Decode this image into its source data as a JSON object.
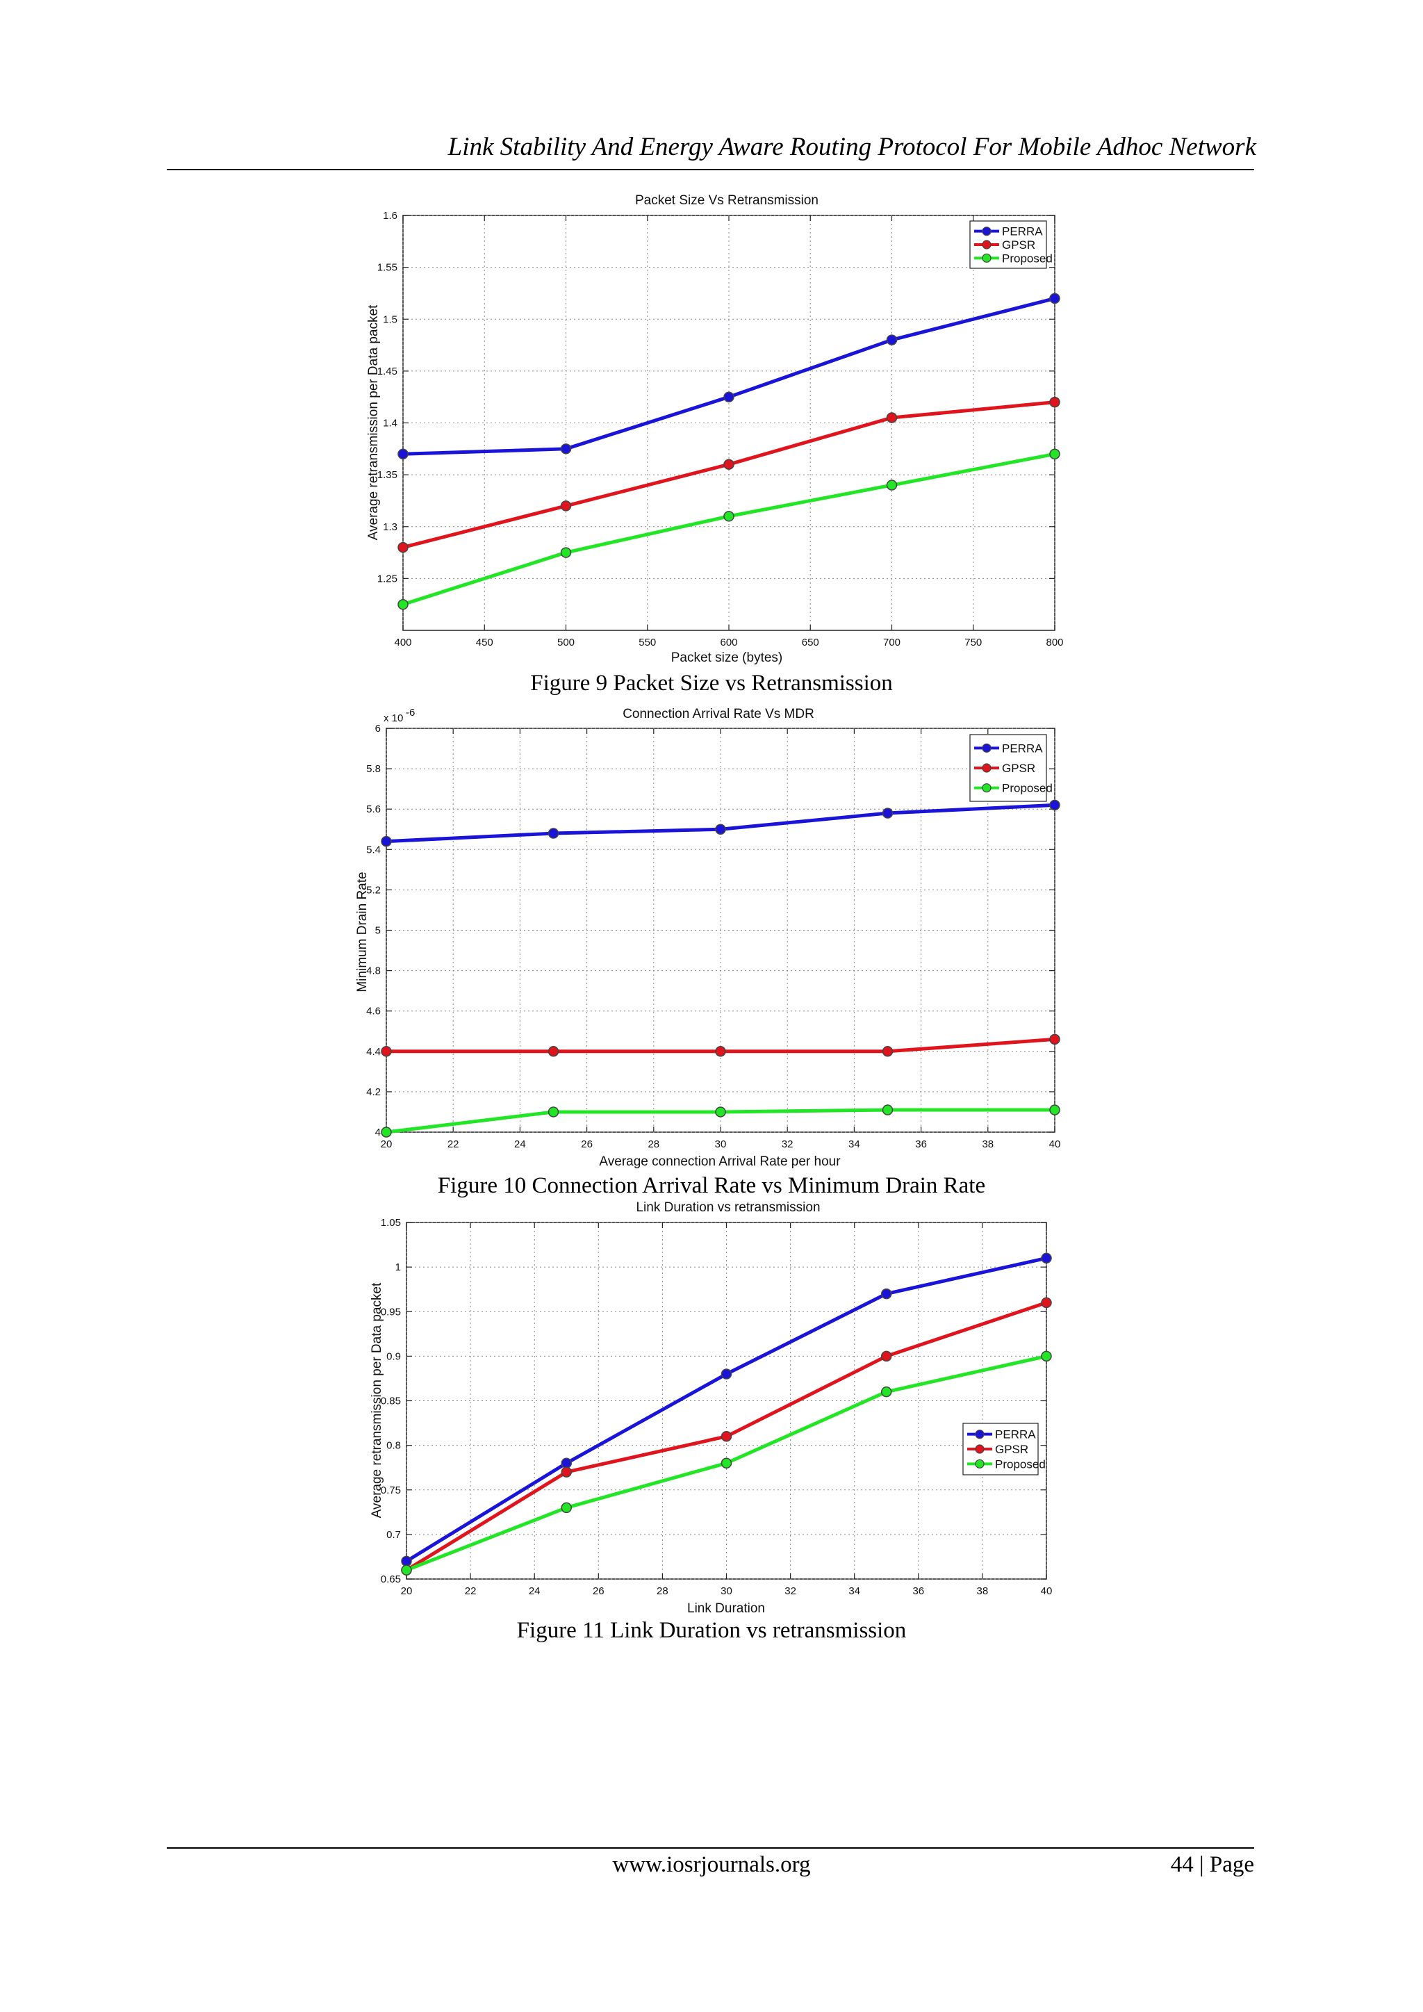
{
  "page": {
    "header": "Link Stability And Energy Aware Routing Protocol  For  Mobile Adhoc Network",
    "footer_url": "www.iosrjournals.org",
    "footer_page": "44 | Page"
  },
  "series_colors": {
    "PERRA": "#1a14d9",
    "GPSR": "#e0141c",
    "Proposed": "#22e625"
  },
  "chart_data": [
    {
      "type": "line",
      "title": "Packet Size Vs Retransmission",
      "xlabel": "Packet size (bytes)",
      "ylabel": "Average retransmission per Data packet",
      "caption": "Figure 9 Packet Size vs Retransmission",
      "x": [
        400,
        500,
        600,
        700,
        800
      ],
      "xlim": [
        400,
        800
      ],
      "ylim": [
        1.2,
        1.6
      ],
      "xticks": [
        400,
        450,
        500,
        550,
        600,
        650,
        700,
        750,
        800
      ],
      "yticks": [
        1.25,
        1.3,
        1.35,
        1.4,
        1.45,
        1.5,
        1.55,
        1.6
      ],
      "xtick_labels": [
        "400",
        "450",
        "500",
        "550",
        "600",
        "650",
        "700",
        "750",
        "800"
      ],
      "ytick_labels": [
        "1.25",
        "1.3",
        "1.35",
        "1.4",
        "1.45",
        "1.5",
        "1.55",
        "1.6"
      ],
      "multiplier": "",
      "legend": "top-right",
      "grid": true,
      "series": [
        {
          "name": "PERRA",
          "values": [
            1.37,
            1.375,
            1.425,
            1.48,
            1.52
          ]
        },
        {
          "name": "GPSR",
          "values": [
            1.28,
            1.32,
            1.36,
            1.405,
            1.42
          ]
        },
        {
          "name": "Proposed",
          "values": [
            1.225,
            1.275,
            1.31,
            1.34,
            1.37
          ]
        }
      ]
    },
    {
      "type": "line",
      "title": "Connection Arrival Rate Vs MDR",
      "xlabel": "Average connection Arrival Rate per hour",
      "ylabel": "Minimum Drain Rate",
      "caption": "Figure 10 Connection Arrival Rate vs Minimum Drain Rate",
      "x": [
        20,
        25,
        30,
        35,
        40
      ],
      "xlim": [
        20,
        40
      ],
      "ylim": [
        4.0,
        6.0
      ],
      "xticks": [
        20,
        22,
        24,
        26,
        28,
        30,
        32,
        34,
        36,
        38,
        40
      ],
      "yticks": [
        4.0,
        4.2,
        4.4,
        4.6,
        4.8,
        5.0,
        5.2,
        5.4,
        5.6,
        5.8,
        6.0
      ],
      "xtick_labels": [
        "20",
        "22",
        "24",
        "26",
        "28",
        "30",
        "32",
        "34",
        "36",
        "38",
        "40"
      ],
      "ytick_labels": [
        "4",
        "4.2",
        "4.4",
        "4.6",
        "4.8",
        "5",
        "5.2",
        "5.4",
        "5.6",
        "5.8",
        "6"
      ],
      "multiplier": "x 10",
      "multiplier_exp": "-6",
      "legend": "top-right",
      "grid": true,
      "series": [
        {
          "name": "PERRA",
          "values": [
            5.44,
            5.48,
            5.5,
            5.58,
            5.62
          ]
        },
        {
          "name": "GPSR",
          "values": [
            4.4,
            4.4,
            4.4,
            4.4,
            4.46
          ]
        },
        {
          "name": "Proposed",
          "values": [
            4.0,
            4.1,
            4.1,
            4.11,
            4.11
          ]
        }
      ]
    },
    {
      "type": "line",
      "title": "Link Duration vs retransmission",
      "xlabel": "Link Duration",
      "ylabel": "Average retransmission per Data packet",
      "caption": "Figure 11 Link Duration vs retransmission",
      "x": [
        20,
        25,
        30,
        35,
        40
      ],
      "xlim": [
        20,
        40
      ],
      "ylim": [
        0.65,
        1.05
      ],
      "xticks": [
        20,
        22,
        24,
        26,
        28,
        30,
        32,
        34,
        36,
        38,
        40
      ],
      "yticks": [
        0.65,
        0.7,
        0.75,
        0.8,
        0.85,
        0.9,
        0.95,
        1.0,
        1.05
      ],
      "xtick_labels": [
        "20",
        "22",
        "24",
        "26",
        "28",
        "30",
        "32",
        "34",
        "36",
        "38",
        "40"
      ],
      "ytick_labels": [
        "0.65",
        "0.7",
        "0.75",
        "0.8",
        "0.85",
        "0.9",
        "0.95",
        "1",
        "1.05"
      ],
      "multiplier": "",
      "legend": "right",
      "grid": true,
      "series": [
        {
          "name": "PERRA",
          "values": [
            0.67,
            0.78,
            0.88,
            0.97,
            1.01
          ]
        },
        {
          "name": "GPSR",
          "values": [
            0.66,
            0.77,
            0.81,
            0.9,
            0.96
          ]
        },
        {
          "name": "Proposed",
          "values": [
            0.66,
            0.73,
            0.78,
            0.86,
            0.9
          ]
        }
      ]
    }
  ]
}
